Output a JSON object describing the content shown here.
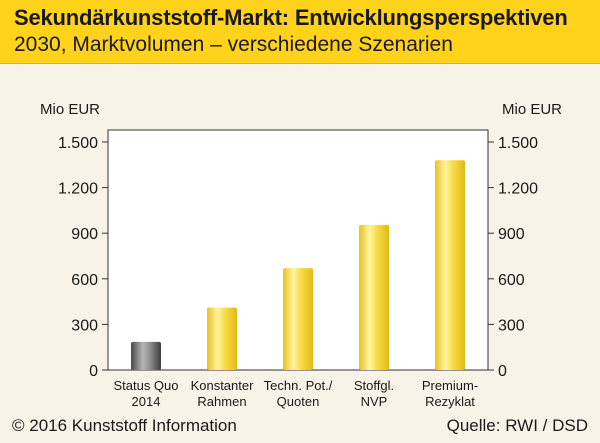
{
  "header": {
    "title": "Sekundärkunststoff-Markt: Entwicklungsperspektiven",
    "subtitle": "2030, Marktvolumen – verschiedene Szenarien"
  },
  "footer": {
    "copyright": "© 2016 Kunststoff Information",
    "source": "Quelle: RWI / DSD"
  },
  "colors": {
    "header_bg": "#ffd21c",
    "bar_yellow": "#f7d43a",
    "bar_gray": "#7a7a7a",
    "page_bg": "#f7f3e6"
  },
  "chart_data": {
    "type": "bar",
    "ylabel_left": "Mio EUR",
    "ylabel_right": "Mio EUR",
    "ylim": [
      0,
      1500
    ],
    "yticks": [
      0,
      300,
      600,
      900,
      1200,
      1500
    ],
    "ytick_labels": [
      "0",
      "300",
      "600",
      "900",
      "1.200",
      "1.500"
    ],
    "grid": false,
    "categories": [
      [
        "Status Quo",
        "2014"
      ],
      [
        "Konstanter",
        "Rahmen"
      ],
      [
        "Techn. Pot./",
        "Quoten"
      ],
      [
        "Stoffgl.",
        "NVP"
      ],
      [
        "Premium-",
        "Rezyklat"
      ]
    ],
    "values": [
      185,
      410,
      670,
      955,
      1380
    ],
    "bar_colors": [
      "gray",
      "yellow",
      "yellow",
      "yellow",
      "yellow"
    ]
  }
}
